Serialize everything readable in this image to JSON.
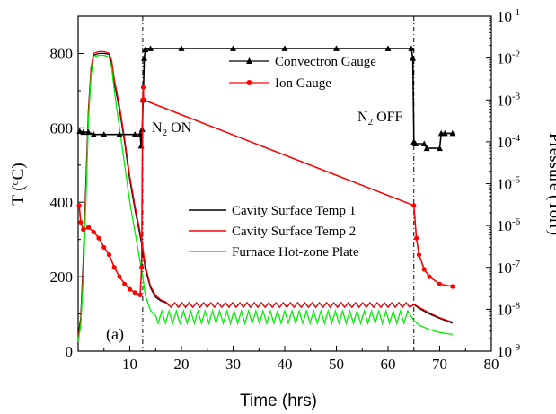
{
  "chart_data": {
    "type": "line",
    "xlabel": "Time (hrs)",
    "ylabel_left": "T (",
    "ylabel_left_sup": "o",
    "ylabel_left_tail": "C)",
    "ylabel_right": "Pressure (Torr)",
    "xlim": [
      0,
      80
    ],
    "ylim_left": [
      0,
      900
    ],
    "ylim_right": [
      1e-09,
      0.1
    ],
    "right_scale": "log",
    "x_ticks": [
      "10",
      "20",
      "30",
      "40",
      "50",
      "60",
      "70",
      "80"
    ],
    "y_ticks_left": [
      "0",
      "200",
      "400",
      "600",
      "800"
    ],
    "y_ticks_right": [
      {
        "base": "10",
        "exp": "-1"
      },
      {
        "base": "10",
        "exp": "-2"
      },
      {
        "base": "10",
        "exp": "-3"
      },
      {
        "base": "10",
        "exp": "-4"
      },
      {
        "base": "10",
        "exp": "-5"
      },
      {
        "base": "10",
        "exp": "-6"
      },
      {
        "base": "10",
        "exp": "-7"
      },
      {
        "base": "10",
        "exp": "-8"
      },
      {
        "base": "10",
        "exp": "-9"
      }
    ],
    "panel_label": "(a)",
    "annotations": [
      {
        "text": "N",
        "sub": "2",
        "tail": " ON",
        "x": 12.5
      },
      {
        "text": "N",
        "sub": "2",
        "tail": " OFF",
        "x": 65
      }
    ],
    "vlines_x": [
      12.5,
      65
    ],
    "legend_pressure": [
      {
        "name": "Convectron Gauge",
        "color": "#000000",
        "marker": "triangle"
      },
      {
        "name": "Ion Gauge",
        "color": "#ff0000",
        "marker": "circle"
      }
    ],
    "legend_temperature": [
      {
        "name": "Cavity Surface Temp 1",
        "color": "#000000"
      },
      {
        "name": "Cavity Surface Temp 2",
        "color": "#ff0000"
      },
      {
        "name": "Furnace Hot-zone Plate",
        "color": "#00ee00"
      }
    ],
    "temperature_series": [
      {
        "name": "Cavity Surface Temp 1",
        "color": "#000000",
        "points": [
          [
            0,
            40
          ],
          [
            0.5,
            90
          ],
          [
            1,
            250
          ],
          [
            1.5,
            450
          ],
          [
            2,
            650
          ],
          [
            2.5,
            760
          ],
          [
            3,
            795
          ],
          [
            4,
            800
          ],
          [
            5,
            800
          ],
          [
            6,
            798
          ],
          [
            6.5,
            770
          ],
          [
            7,
            720
          ],
          [
            8,
            650
          ],
          [
            9,
            560
          ],
          [
            10,
            460
          ],
          [
            11,
            380
          ],
          [
            12,
            310
          ],
          [
            12.5,
            270
          ],
          [
            13,
            220
          ],
          [
            14,
            170
          ],
          [
            15,
            145
          ],
          [
            16,
            135
          ],
          [
            17,
            130
          ],
          [
            18,
            128
          ],
          [
            20,
            127
          ],
          [
            30,
            127
          ],
          [
            40,
            127
          ],
          [
            50,
            127
          ],
          [
            60,
            127
          ],
          [
            64,
            127
          ],
          [
            65,
            125
          ],
          [
            66,
            115
          ],
          [
            68,
            100
          ],
          [
            70,
            88
          ],
          [
            72.5,
            75
          ]
        ]
      },
      {
        "name": "Cavity Surface Temp 2",
        "color": "#ff0000",
        "points": [
          [
            0,
            35
          ],
          [
            0.5,
            80
          ],
          [
            1,
            230
          ],
          [
            1.5,
            430
          ],
          [
            2,
            640
          ],
          [
            2.5,
            760
          ],
          [
            3,
            800
          ],
          [
            4,
            805
          ],
          [
            5,
            805
          ],
          [
            6,
            800
          ],
          [
            6.5,
            780
          ],
          [
            7,
            730
          ],
          [
            8,
            660
          ],
          [
            9,
            570
          ],
          [
            10,
            470
          ],
          [
            11,
            390
          ],
          [
            12,
            320
          ],
          [
            12.5,
            280
          ],
          [
            13,
            230
          ],
          [
            14,
            175
          ],
          [
            15,
            150
          ],
          [
            16,
            138
          ],
          [
            17,
            132
          ],
          [
            18,
            130
          ],
          [
            20,
            128
          ],
          [
            30,
            128
          ],
          [
            40,
            128
          ],
          [
            50,
            128
          ],
          [
            60,
            128
          ],
          [
            64,
            128
          ],
          [
            65,
            126
          ],
          [
            66,
            118
          ],
          [
            68,
            103
          ],
          [
            70,
            90
          ],
          [
            72.5,
            78
          ]
        ]
      },
      {
        "name": "Furnace Hot-zone Plate",
        "color": "#00ee00",
        "points": [
          [
            0,
            25
          ],
          [
            0.5,
            70
          ],
          [
            1,
            200
          ],
          [
            1.5,
            400
          ],
          [
            2,
            620
          ],
          [
            2.5,
            740
          ],
          [
            3,
            790
          ],
          [
            4,
            795
          ],
          [
            5,
            795
          ],
          [
            6,
            790
          ],
          [
            6.5,
            760
          ],
          [
            7,
            700
          ],
          [
            8,
            600
          ],
          [
            9,
            500
          ],
          [
            10,
            400
          ],
          [
            11,
            320
          ],
          [
            12,
            240
          ],
          [
            12.5,
            200
          ],
          [
            13,
            150
          ],
          [
            14,
            110
          ],
          [
            15,
            95
          ],
          [
            16,
            90
          ],
          [
            17,
            85
          ],
          [
            20,
            85
          ],
          [
            30,
            85
          ],
          [
            40,
            85
          ],
          [
            50,
            85
          ],
          [
            60,
            85
          ],
          [
            64,
            85
          ],
          [
            65,
            82
          ],
          [
            66,
            70
          ],
          [
            68,
            58
          ],
          [
            70,
            50
          ],
          [
            72.5,
            45
          ]
        ]
      }
    ],
    "furnace_oscillation": {
      "start": 15.5,
      "end": 64.5,
      "period": 1.4,
      "low": 75,
      "high": 108
    },
    "cavity_oscillation": {
      "start": 18,
      "end": 64.5,
      "period": 1.4,
      "low": 118,
      "high": 130
    },
    "pressure_series": [
      {
        "name": "Convectron Gauge",
        "color": "#000000",
        "marker": "triangle",
        "points": [
          [
            0.3,
            0.00018
          ],
          [
            1,
            0.00017
          ],
          [
            2,
            0.00017
          ],
          [
            3,
            0.00015
          ],
          [
            5,
            0.00015
          ],
          [
            8,
            0.00015
          ],
          [
            11,
            0.00015
          ],
          [
            12,
            0.00015
          ],
          [
            12.2,
            8e-05
          ],
          [
            12.4,
            0.0002
          ],
          [
            12.6,
            0.001
          ],
          [
            12.8,
            0.01
          ],
          [
            13,
            0.016
          ],
          [
            14,
            0.017
          ],
          [
            20,
            0.017
          ],
          [
            30,
            0.017
          ],
          [
            40,
            0.017
          ],
          [
            50,
            0.017
          ],
          [
            60,
            0.017
          ],
          [
            64.5,
            0.017
          ],
          [
            64.8,
            0.01
          ],
          [
            65,
            0.0001
          ],
          [
            65.3,
            9e-05
          ],
          [
            67,
            9e-05
          ],
          [
            67.5,
            7e-05
          ],
          [
            70,
            7e-05
          ],
          [
            70.3,
            0.00016
          ],
          [
            71,
            0.00016
          ],
          [
            72.5,
            0.00016
          ]
        ]
      },
      {
        "name": "Ion Gauge",
        "color": "#ff0000",
        "marker": "circle",
        "points": [
          [
            0.2,
            3e-06
          ],
          [
            0.5,
            1.2e-06
          ],
          [
            1,
            8e-07
          ],
          [
            2,
            9e-07
          ],
          [
            3,
            7e-07
          ],
          [
            4,
            5e-07
          ],
          [
            5,
            3e-07
          ],
          [
            6,
            2e-07
          ],
          [
            7,
            1e-07
          ],
          [
            8,
            6e-08
          ],
          [
            9,
            4e-08
          ],
          [
            10,
            3e-08
          ],
          [
            11,
            2.5e-08
          ],
          [
            12,
            2.2e-08
          ],
          [
            12.3,
            1e-07
          ],
          [
            12.5,
            0.001
          ],
          [
            12.6,
            0.002
          ],
          [
            12.7,
            0.001
          ],
          [
            65,
            3e-06
          ],
          [
            65.5,
            5e-07
          ],
          [
            66,
            2e-07
          ],
          [
            67,
            9e-08
          ],
          [
            68,
            6e-08
          ],
          [
            70,
            4e-08
          ],
          [
            72.5,
            3.5e-08
          ]
        ]
      }
    ]
  }
}
